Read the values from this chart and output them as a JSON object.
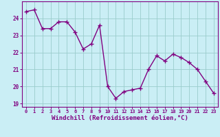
{
  "x": [
    0,
    1,
    2,
    3,
    4,
    5,
    6,
    7,
    8,
    9,
    10,
    11,
    12,
    13,
    14,
    15,
    16,
    17,
    18,
    19,
    20,
    21,
    22,
    23
  ],
  "y": [
    24.4,
    24.5,
    23.4,
    23.4,
    23.8,
    23.8,
    23.2,
    22.2,
    22.5,
    23.6,
    20.0,
    19.3,
    19.7,
    19.8,
    19.9,
    21.0,
    21.8,
    21.5,
    21.9,
    21.7,
    21.4,
    21.0,
    20.3,
    19.6
  ],
  "line_color": "#800080",
  "marker": "+",
  "markersize": 4,
  "linewidth": 1.0,
  "background_color": "#caeef5",
  "grid_color": "#99cccc",
  "xlabel": "Windchill (Refroidissement éolien,°C)",
  "xlabel_fontsize": 6.5,
  "tick_label_color": "#800080",
  "xlabel_color": "#800080",
  "ylim": [
    18.8,
    25.0
  ],
  "yticks": [
    19,
    20,
    21,
    22,
    23,
    24
  ],
  "xticks": [
    0,
    1,
    2,
    3,
    4,
    5,
    6,
    7,
    8,
    9,
    10,
    11,
    12,
    13,
    14,
    15,
    16,
    17,
    18,
    19,
    20,
    21,
    22,
    23
  ],
  "spine_color": "#800080"
}
